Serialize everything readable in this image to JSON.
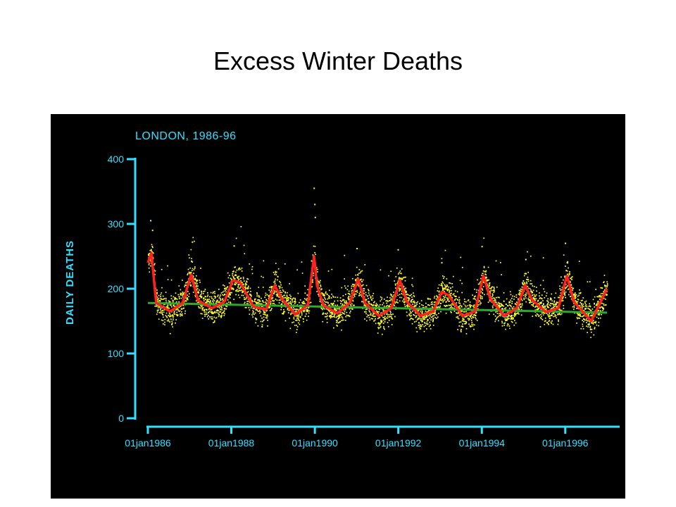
{
  "slide": {
    "title": "Excess Winter Deaths"
  },
  "chart_data": {
    "type": "scatter",
    "title": "LONDON, 1986-96",
    "xlabel": "",
    "ylabel": "DAILY DEATHS",
    "ylim": [
      0,
      400
    ],
    "xlim": [
      "1986-01-01",
      "1996-12-31"
    ],
    "y_ticks": [
      "0",
      "100",
      "200",
      "300",
      "400"
    ],
    "x_ticks": [
      "01jan1986",
      "01jan1988",
      "01jan1990",
      "01jan1992",
      "01jan1994",
      "01jan1996"
    ],
    "x_tick_dates": [
      "1986-01-01",
      "1988-01-01",
      "1990-01-01",
      "1992-01-01",
      "1994-01-01",
      "1996-01-01"
    ],
    "grid": false,
    "colors": {
      "background": "#000000",
      "axis": "#33e0ff",
      "points": "#ffff33",
      "seasonal_line": "#ff2020",
      "trend_line": "#2fa82f"
    },
    "series": [
      {
        "type": "line",
        "x": [
          "1986-01-01",
          "1986-02-01",
          "1986-03-15",
          "1986-07-15",
          "1986-11-01",
          "1987-01-15",
          "1987-03-15",
          "1987-07-15",
          "1987-11-01",
          "1988-01-15",
          "1988-03-15",
          "1988-07-15",
          "1988-11-01",
          "1989-01-15",
          "1989-03-15",
          "1989-07-15",
          "1989-11-01",
          "1989-12-25",
          "1990-01-20",
          "1990-03-15",
          "1990-07-15",
          "1990-11-01",
          "1991-01-15",
          "1991-03-15",
          "1991-07-15",
          "1991-11-01",
          "1992-01-15",
          "1992-03-15",
          "1992-07-15",
          "1992-11-01",
          "1993-01-15",
          "1993-03-15",
          "1993-07-15",
          "1993-11-01",
          "1994-01-15",
          "1994-03-15",
          "1994-07-15",
          "1994-11-01",
          "1995-01-15",
          "1995-03-15",
          "1995-07-15",
          "1995-11-01",
          "1996-01-15",
          "1996-03-15",
          "1996-08-15",
          "1996-12-31"
        ],
        "values": [
          240,
          255,
          178,
          165,
          178,
          222,
          182,
          170,
          180,
          213,
          210,
          172,
          168,
          205,
          185,
          160,
          175,
          250,
          205,
          175,
          162,
          178,
          215,
          178,
          158,
          170,
          213,
          180,
          158,
          165,
          195,
          190,
          158,
          165,
          220,
          185,
          158,
          170,
          205,
          183,
          164,
          170,
          220,
          180,
          150,
          200
        ]
      },
      {
        "type": "line",
        "x": [
          "1986-01-01",
          "1996-12-31"
        ],
        "values": [
          178,
          163
        ]
      }
    ]
  }
}
